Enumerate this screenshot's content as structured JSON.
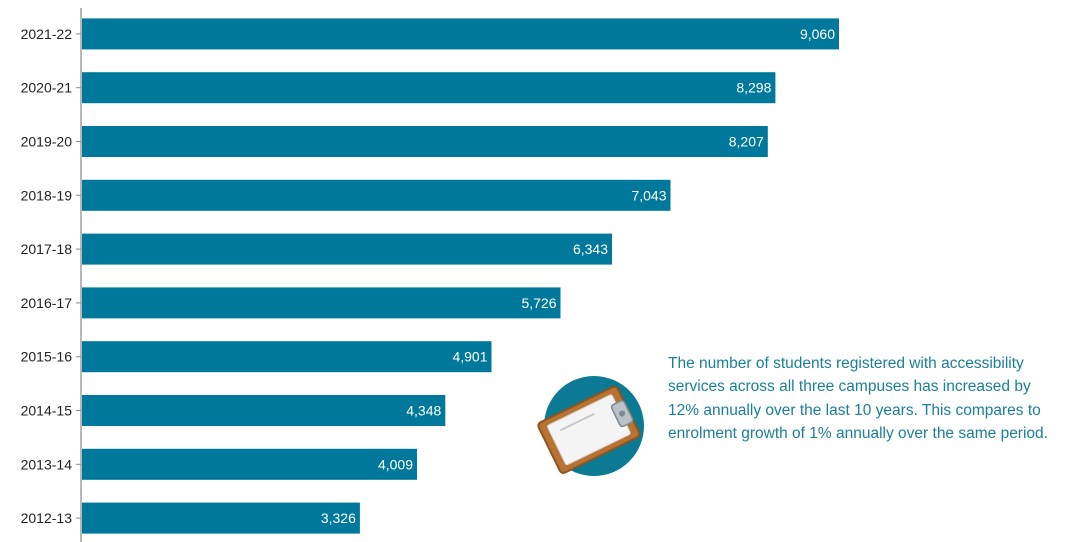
{
  "chart_data": {
    "type": "bar",
    "orientation": "horizontal",
    "categories": [
      "2021-22",
      "2020-21",
      "2019-20",
      "2018-19",
      "2017-18",
      "2016-17",
      "2015-16",
      "2014-15",
      "2013-14",
      "2012-13"
    ],
    "values": [
      9060,
      8298,
      8207,
      7043,
      6343,
      5726,
      4901,
      4348,
      4009,
      3326
    ],
    "value_labels": [
      "9,060",
      "8,298",
      "8,207",
      "7,043",
      "6,343",
      "5,726",
      "4,901",
      "4,348",
      "4,009",
      "3,326"
    ],
    "xlim": [
      0,
      11800
    ],
    "grid": false,
    "bar_color": "#00789b"
  },
  "annotation": {
    "text": "The number of students registered with accessibility services across all three campuses has increased by 12% annually over the last 10 years. This compares to enrolment growth of 1% annually over the same period.",
    "color": "#1b7f99",
    "icon": "clipboard-icon",
    "icon_circle_color": "#0d7a94"
  }
}
